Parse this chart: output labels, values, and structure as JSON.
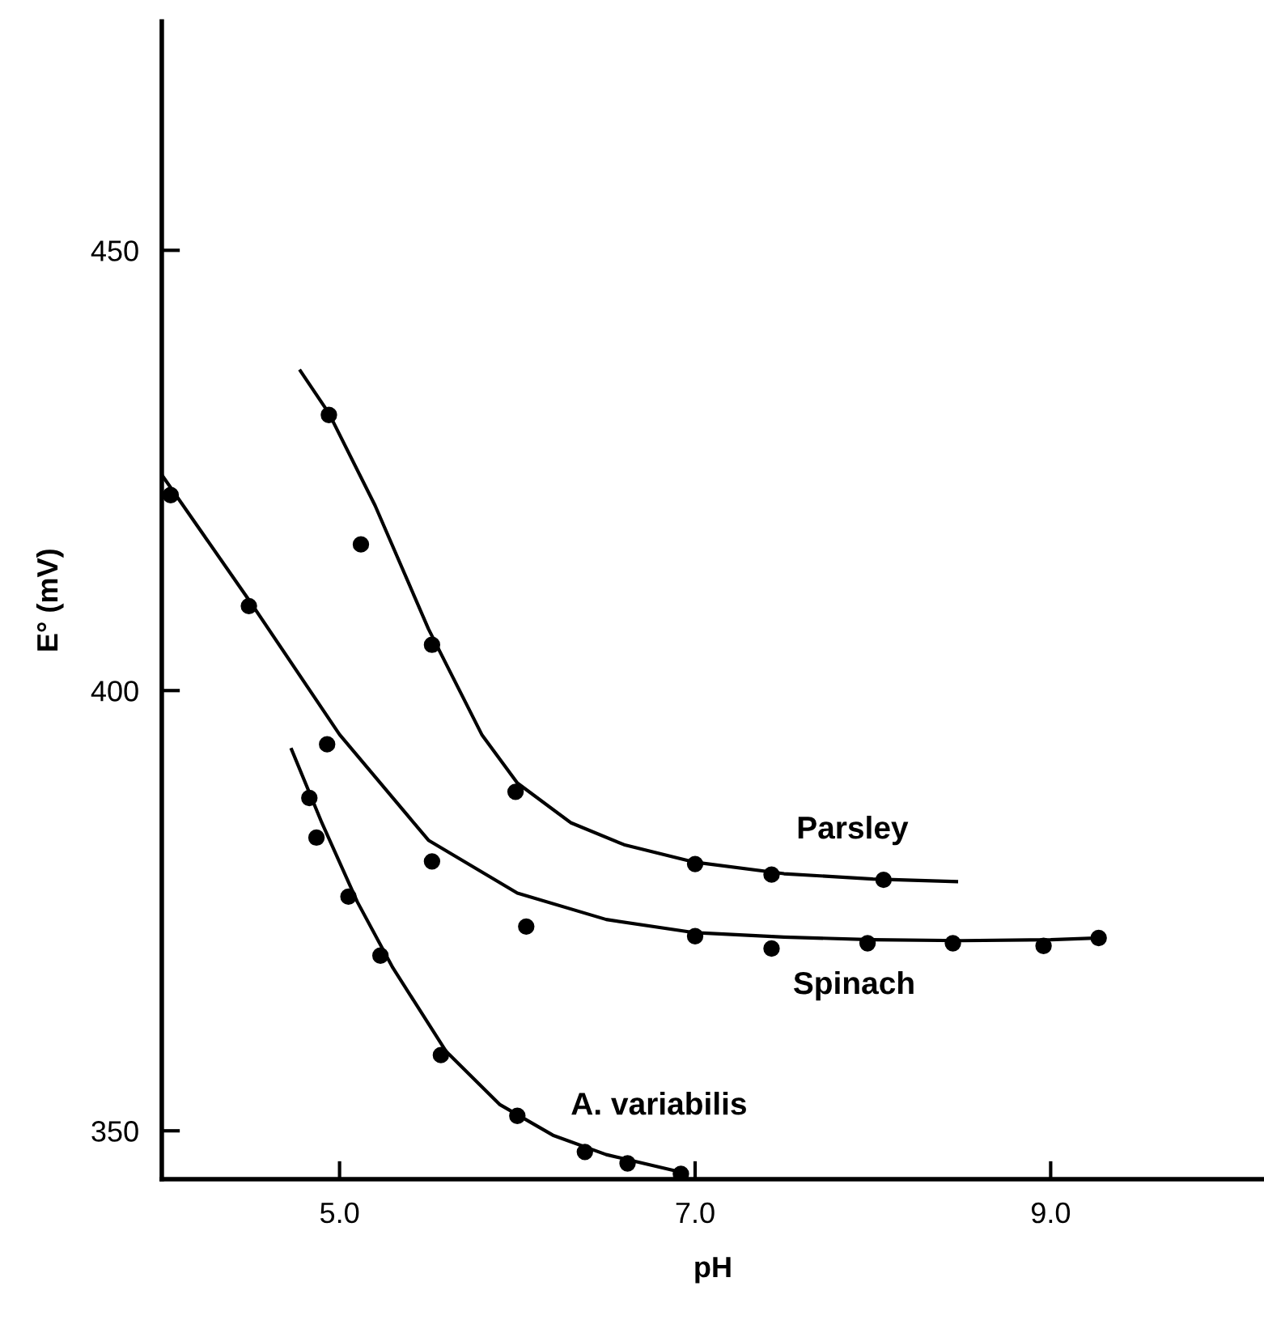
{
  "chart_data": {
    "type": "scatter",
    "xlabel": "pH",
    "ylabel": "E° (mV)",
    "xlim": [
      4.0,
      10.2
    ],
    "ylim": [
      344.5,
      476
    ],
    "xticks": [
      {
        "value": 5,
        "label": "5.0"
      },
      {
        "value": 7,
        "label": "7.0"
      },
      {
        "value": 9,
        "label": "9.0"
      }
    ],
    "yticks": [
      350,
      400,
      450
    ],
    "grid": false,
    "legend": false,
    "marker": "circle",
    "series": [
      {
        "color": "#000000",
        "x": [
          4.94,
          5.12,
          5.52,
          5.99,
          7.0,
          7.43,
          8.06
        ],
        "values": [
          431.3,
          416.6,
          405.2,
          388.5,
          380.3,
          379.1,
          378.5
        ]
      },
      {
        "type": "line",
        "name": "Parsley",
        "marker": "none",
        "color": "#000000",
        "x": [
          4.78,
          4.94,
          5.2,
          5.5,
          5.8,
          6.0,
          6.3,
          6.6,
          7.0,
          7.5,
          8.0,
          8.47
        ],
        "values": [
          436.3,
          431.5,
          421,
          407,
          395,
          389.5,
          385,
          382.5,
          380.5,
          379.2,
          378.6,
          378.3
        ]
      },
      {
        "color": "#000000",
        "x": [
          4.05,
          4.49,
          4.93,
          5.52,
          6.05,
          7.0,
          7.43,
          7.97,
          8.45,
          8.96,
          9.27
        ],
        "values": [
          422.2,
          409.6,
          393.9,
          380.6,
          373.2,
          372.1,
          370.7,
          371.3,
          371.3,
          371.0,
          371.9
        ]
      },
      {
        "type": "line",
        "name": "Spinach",
        "marker": "none",
        "color": "#000000",
        "x": [
          4.0,
          4.5,
          5.0,
          5.5,
          6.0,
          6.5,
          7.0,
          7.5,
          8.0,
          8.5,
          9.0,
          9.27
        ],
        "values": [
          424.5,
          410,
          395,
          383,
          377,
          374,
          372.5,
          372,
          371.7,
          371.6,
          371.7,
          371.9
        ]
      },
      {
        "color": "#000000",
        "x": [
          4.83,
          4.87,
          5.05,
          5.23,
          5.57,
          6.0,
          6.38,
          6.62,
          6.92
        ],
        "values": [
          387.8,
          383.3,
          376.6,
          369.9,
          358.6,
          351.7,
          347.6,
          346.3,
          345.1
        ]
      },
      {
        "type": "line",
        "name": "A. variabilis",
        "marker": "none",
        "color": "#000000",
        "x": [
          4.73,
          4.9,
          5.1,
          5.3,
          5.6,
          5.9,
          6.2,
          6.5,
          6.9
        ],
        "values": [
          393.3,
          385,
          376,
          368.5,
          359,
          353,
          349.5,
          347.3,
          345.4
        ]
      }
    ]
  }
}
